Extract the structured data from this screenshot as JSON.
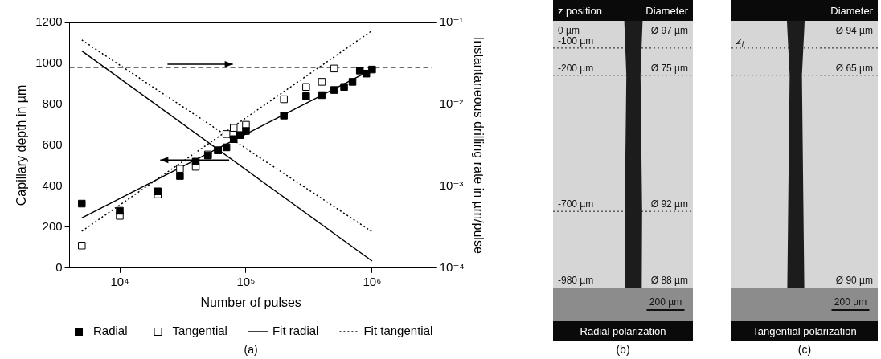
{
  "chart_data": {
    "type": "scatter",
    "panel_label": "(a)",
    "x_label": "Number of pulses",
    "y_label": "Capillary depth in µm",
    "y2_label": "Instantaneous drilling rate in µm/pulse",
    "log": [
      "x",
      "y2"
    ],
    "grid": false,
    "legend": "bottom",
    "xlim": [
      4000,
      3000000
    ],
    "xticks": [
      {
        "value": 10000,
        "label": "10⁴"
      },
      {
        "value": 100000,
        "label": "10⁵"
      },
      {
        "value": 1000000,
        "label": "10⁶"
      }
    ],
    "ylim": [
      0,
      1200
    ],
    "yticks": [
      0,
      200,
      400,
      600,
      800,
      1000,
      1200
    ],
    "y2lim": [
      0.0001,
      0.1
    ],
    "y2ticks": [
      {
        "value": 0.0001,
        "label": "10⁻⁴"
      },
      {
        "value": 0.001,
        "label": "10⁻³"
      },
      {
        "value": 0.01,
        "label": "10⁻²"
      },
      {
        "value": 0.1,
        "label": "10⁻¹"
      }
    ],
    "reference_line": {
      "y": 980,
      "line_style": "dashed"
    },
    "series": [
      {
        "name": "Radial",
        "type": "scatter",
        "marker": "square",
        "color": "#000000",
        "x": [
          5000,
          10000,
          20000,
          30000,
          40000,
          50000,
          60000,
          70000,
          80000,
          90000,
          100000,
          200000,
          300000,
          400000,
          500000,
          600000,
          700000,
          800000,
          900000,
          1000000
        ],
        "values": [
          315,
          280,
          375,
          450,
          520,
          550,
          575,
          590,
          630,
          650,
          670,
          745,
          840,
          845,
          870,
          885,
          910,
          965,
          950,
          970
        ]
      },
      {
        "name": "Tangential",
        "type": "scatter",
        "marker": "square_open",
        "color": "#000000",
        "x": [
          5000,
          10000,
          20000,
          30000,
          40000,
          50000,
          60000,
          70000,
          80000,
          100000,
          200000,
          300000,
          400000,
          500000
        ],
        "values": [
          110,
          255,
          360,
          485,
          495,
          555,
          575,
          655,
          685,
          700,
          825,
          885,
          910,
          975
        ]
      },
      {
        "name": "Fit radial",
        "type": "line",
        "line_style": "solid",
        "color": "#000000",
        "x": [
          5000,
          1000000
        ],
        "values": [
          245,
          970
        ]
      },
      {
        "name": "Fit tangential",
        "type": "line",
        "line_style": "dotted",
        "color": "#000000",
        "x": [
          5000,
          1000000
        ],
        "values": [
          180,
          1160
        ]
      },
      {
        "name": "Fit radial",
        "type": "line",
        "line_style": "solid",
        "color": "#000000",
        "axis": "y2",
        "x": [
          5000,
          1000000
        ],
        "values": [
          0.045,
          0.000122
        ]
      },
      {
        "name": "Fit tangential",
        "type": "line",
        "line_style": "dotted",
        "color": "#000000",
        "axis": "y2",
        "x": [
          5000,
          1000000
        ],
        "values": [
          0.061,
          0.000278
        ]
      }
    ]
  },
  "panels": [
    {
      "label": "(b)",
      "header_left": "z position",
      "header_right": "Diameter",
      "caption": "Radial polarization",
      "scale_bar": "200 µm",
      "rows": [
        {
          "z": "0 µm",
          "diameter": "Ø 97 µm"
        },
        {
          "z": "-100 µm",
          "line_style": "dotted"
        },
        {
          "z": "-200 µm",
          "diameter": "Ø 75 µm",
          "line_style": "dotted"
        },
        {
          "z": "-700 µm",
          "diameter": "Ø 92 µm",
          "line_style": "dotted"
        },
        {
          "z": "-980 µm",
          "diameter": "Ø 88 µm"
        }
      ]
    },
    {
      "label": "(c)",
      "header_right": "Diameter",
      "caption": "Tangential polarization",
      "scale_bar": "200 µm",
      "rows": [
        {
          "diameter": "Ø 94 µm"
        },
        {
          "z_label": {
            "text": "z",
            "subscript": "f"
          },
          "line_style": "dotted"
        },
        {
          "diameter": "Ø 65 µm",
          "line_style": "dotted"
        },
        {},
        {
          "diameter": "Ø 90 µm"
        }
      ]
    }
  ]
}
